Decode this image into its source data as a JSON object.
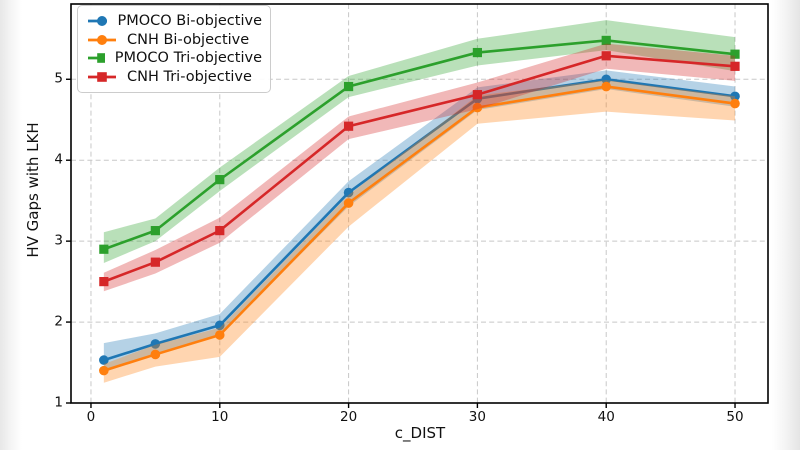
{
  "chart_data": {
    "type": "line",
    "title": "",
    "xlabel": "c_DIST",
    "ylabel": "HV Gaps with LKH",
    "x": [
      1,
      5,
      10,
      20,
      30,
      40,
      50
    ],
    "xticks": [
      "0",
      "10",
      "20",
      "30",
      "40",
      "50"
    ],
    "xtick_values": [
      0,
      10,
      20,
      30,
      40,
      50
    ],
    "yticks": [
      "1",
      "2",
      "3",
      "4",
      "5"
    ],
    "ytick_values": [
      1,
      2,
      3,
      4,
      5
    ],
    "xlim": [
      -1.55,
      52.56
    ],
    "ylim": [
      1.0,
      5.93
    ],
    "grid": "dashed",
    "grid_color": "#c8c8c8",
    "legend_position": "upper-left",
    "band_alpha": 0.33,
    "series": [
      {
        "name": "PMOCO Bi-objective",
        "color": "#1f77b4",
        "marker": "circle",
        "values": [
          1.53,
          1.73,
          1.96,
          3.6,
          4.76,
          5.0,
          4.79
        ],
        "band_low": [
          1.38,
          1.6,
          1.84,
          3.43,
          4.62,
          4.88,
          4.66
        ],
        "band_high": [
          1.74,
          1.86,
          2.1,
          3.74,
          4.9,
          5.11,
          4.91
        ]
      },
      {
        "name": "CNH Bi-objective",
        "color": "#ff7f0e",
        "marker": "circle",
        "values": [
          1.4,
          1.6,
          1.84,
          3.47,
          4.65,
          4.91,
          4.7
        ],
        "band_low": [
          1.25,
          1.45,
          1.57,
          3.18,
          4.45,
          4.6,
          4.49
        ],
        "band_high": [
          1.48,
          1.72,
          1.93,
          3.57,
          4.8,
          4.99,
          4.79
        ]
      },
      {
        "name": "PMOCO Tri-objective",
        "color": "#2ca02c",
        "marker": "square",
        "values": [
          2.9,
          3.13,
          3.76,
          4.91,
          5.33,
          5.48,
          5.31
        ],
        "band_low": [
          2.73,
          3.0,
          3.62,
          4.78,
          5.17,
          5.36,
          5.1
        ],
        "band_high": [
          3.11,
          3.28,
          3.91,
          5.04,
          5.5,
          5.73,
          5.52
        ]
      },
      {
        "name": "CNH Tri-objective",
        "color": "#d62728",
        "marker": "square",
        "values": [
          2.5,
          2.74,
          3.13,
          4.42,
          4.81,
          5.29,
          5.16
        ],
        "band_low": [
          2.38,
          2.6,
          2.98,
          4.26,
          4.63,
          5.13,
          4.98
        ],
        "band_high": [
          2.61,
          2.89,
          3.29,
          4.54,
          4.96,
          5.44,
          5.29
        ]
      }
    ]
  }
}
